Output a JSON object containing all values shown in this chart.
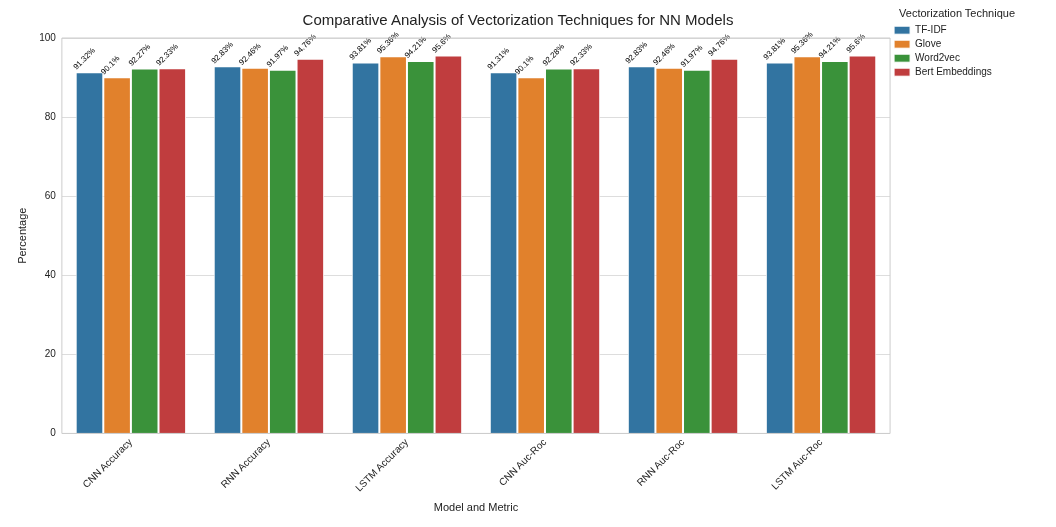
{
  "chart_data": {
    "type": "bar",
    "title": "Comparative Analysis of Vectorization Techniques for NN Models",
    "xlabel": "Model and Metric",
    "ylabel": "Percentage",
    "legend_title": "Vectorization Technique",
    "legend": "top right",
    "grid": "y",
    "categories": [
      "CNN Accuracy",
      "RNN Accuracy",
      "LSTM Accuracy",
      "CNN Auc-Roc",
      "RNN Auc-Roc",
      "LSTM Auc-Roc"
    ],
    "ylim": [
      0,
      100
    ],
    "yticks": [
      0,
      20,
      40,
      60,
      80,
      100
    ],
    "series": [
      {
        "name": "TF-IDF",
        "color": "#3274a1",
        "values": [
          91.32,
          92.83,
          93.81,
          91.31,
          92.83,
          93.81
        ],
        "value_labels": [
          "91.32%",
          "92.83%",
          "93.81%",
          "91.31%",
          "92.83%",
          "93.81%"
        ]
      },
      {
        "name": "Glove",
        "color": "#e1812c",
        "values": [
          90.1,
          92.46,
          95.36,
          90.1,
          92.46,
          95.36
        ],
        "value_labels": [
          "90.1%",
          "92.46%",
          "95.36%",
          "90.1%",
          "92.46%",
          "95.36%"
        ]
      },
      {
        "name": "Word2vec",
        "color": "#3a923a",
        "values": [
          92.27,
          91.97,
          94.21,
          92.28,
          91.97,
          94.21
        ],
        "value_labels": [
          "92.27%",
          "91.97%",
          "94.21%",
          "92.28%",
          "91.97%",
          "94.21%"
        ]
      },
      {
        "name": "Bert Embeddings",
        "color": "#c03d3e",
        "values": [
          92.33,
          94.76,
          95.6,
          92.33,
          94.76,
          95.6
        ],
        "value_labels": [
          "92.33%",
          "94.76%",
          "95.6%",
          "92.33%",
          "94.76%",
          "95.6%"
        ]
      }
    ]
  }
}
